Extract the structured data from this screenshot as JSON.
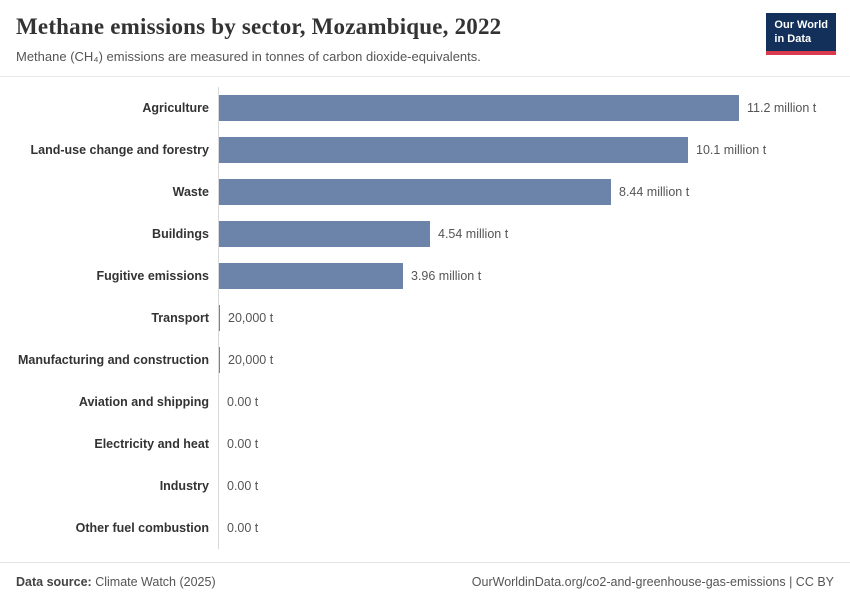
{
  "header": {
    "title": "Methane emissions by sector, Mozambique, 2022",
    "subtitle": "Methane (CH₄) emissions are measured in tonnes of carbon dioxide-equivalents."
  },
  "logo": {
    "line1": "Our World",
    "line2": "in Data",
    "bg_color": "#12305a",
    "accent_color": "#d93a4e"
  },
  "chart_data": {
    "type": "bar",
    "orientation": "horizontal",
    "title": "Methane emissions by sector, Mozambique, 2022",
    "subtitle": "Methane (CH₄) emissions are measured in tonnes of carbon dioxide-equivalents.",
    "unit": "tonnes of carbon dioxide-equivalents",
    "categories": [
      "Agriculture",
      "Land-use change and forestry",
      "Waste",
      "Buildings",
      "Fugitive emissions",
      "Transport",
      "Manufacturing and construction",
      "Aviation and shipping",
      "Electricity and heat",
      "Industry",
      "Other fuel combustion"
    ],
    "values": [
      11200000,
      10100000,
      8440000,
      4540000,
      3960000,
      20000,
      20000,
      0,
      0,
      0,
      0
    ],
    "value_labels": [
      "11.2 million t",
      "10.1 million t",
      "8.44 million t",
      "4.54 million t",
      "3.96 million t",
      "20,000 t",
      "20,000 t",
      "0.00 t",
      "0.00 t",
      "0.00 t",
      "0.00 t"
    ],
    "bar_color": "#6c84a9",
    "xlim": [
      0,
      11200000
    ],
    "grid": false,
    "legend": false
  },
  "footer": {
    "source_label": "Data source:",
    "source_value": " Climate Watch (2025)",
    "right_text": "OurWorldinData.org/co2-and-greenhouse-gas-emissions | CC BY"
  }
}
